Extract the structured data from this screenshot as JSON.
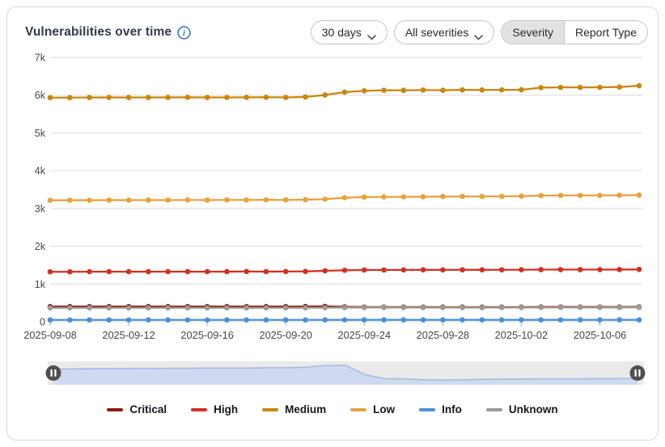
{
  "header": {
    "title": "Vulnerabilities over time",
    "controls": {
      "time_range": {
        "value": "30 days"
      },
      "severity_filter": {
        "value": "All severities"
      },
      "group_toggle": {
        "options": [
          "Severity",
          "Report Type"
        ],
        "selected": "Severity"
      }
    }
  },
  "chart_data": {
    "type": "line",
    "title": "Vulnerabilities over time",
    "xlabel": "",
    "ylabel": "",
    "ylim": [
      0,
      7000
    ],
    "grid": true,
    "legend_position": "bottom",
    "y_ticks": [
      "0",
      "1k",
      "2k",
      "3k",
      "4k",
      "5k",
      "6k",
      "7k"
    ],
    "x": [
      "2025-09-08",
      "2025-09-09",
      "2025-09-10",
      "2025-09-11",
      "2025-09-12",
      "2025-09-13",
      "2025-09-14",
      "2025-09-15",
      "2025-09-16",
      "2025-09-17",
      "2025-09-18",
      "2025-09-19",
      "2025-09-20",
      "2025-09-21",
      "2025-09-22",
      "2025-09-23",
      "2025-09-24",
      "2025-09-25",
      "2025-09-26",
      "2025-09-27",
      "2025-09-28",
      "2025-09-29",
      "2025-09-30",
      "2025-10-01",
      "2025-10-02",
      "2025-10-03",
      "2025-10-04",
      "2025-10-05",
      "2025-10-06",
      "2025-10-07",
      "2025-10-08"
    ],
    "x_tick_labels": [
      "2025-09-08",
      "2025-09-12",
      "2025-09-16",
      "2025-09-20",
      "2025-09-24",
      "2025-09-28",
      "2025-10-02",
      "2025-10-06"
    ],
    "x_tick_every": 4,
    "series": [
      {
        "name": "Medium",
        "color": "#c8870e",
        "values": [
          5935,
          5935,
          5938,
          5940,
          5938,
          5940,
          5940,
          5942,
          5940,
          5940,
          5942,
          5945,
          5940,
          5952,
          6005,
          6080,
          6115,
          6130,
          6128,
          6135,
          6130,
          6140,
          6138,
          6140,
          6142,
          6200,
          6205,
          6205,
          6208,
          6215,
          6250
        ]
      },
      {
        "name": "Low",
        "color": "#e6a23c",
        "values": [
          3215,
          3218,
          3218,
          3220,
          3220,
          3222,
          3220,
          3225,
          3222,
          3225,
          3225,
          3228,
          3225,
          3232,
          3245,
          3285,
          3300,
          3305,
          3308,
          3310,
          3315,
          3318,
          3318,
          3320,
          3325,
          3340,
          3345,
          3345,
          3345,
          3348,
          3352
        ]
      },
      {
        "name": "High",
        "color": "#d23121",
        "values": [
          1322,
          1322,
          1325,
          1325,
          1325,
          1326,
          1325,
          1326,
          1325,
          1326,
          1330,
          1326,
          1330,
          1332,
          1348,
          1362,
          1370,
          1370,
          1372,
          1374,
          1372,
          1375,
          1374,
          1375,
          1376,
          1380,
          1380,
          1380,
          1380,
          1382,
          1385
        ]
      },
      {
        "name": "Critical",
        "color": "#8e1b0c",
        "values": [
          400,
          400,
          400,
          400,
          400,
          400,
          400,
          400,
          400,
          400,
          400,
          400,
          400,
          402,
          405,
          395,
          388,
          388,
          388,
          388,
          386,
          386,
          386,
          386,
          386,
          390,
          390,
          390,
          390,
          390,
          392
        ]
      },
      {
        "name": "Unknown",
        "color": "#9b9b9b",
        "values": [
          365,
          365,
          366,
          366,
          366,
          366,
          366,
          367,
          366,
          367,
          367,
          367,
          367,
          368,
          372,
          376,
          376,
          376,
          376,
          375,
          374,
          374,
          374,
          375,
          375,
          378,
          378,
          378,
          378,
          379,
          380
        ]
      },
      {
        "name": "Info",
        "color": "#4a90d9",
        "values": [
          48,
          48,
          48,
          48,
          48,
          48,
          48,
          48,
          48,
          48,
          48,
          48,
          48,
          48,
          50,
          50,
          50,
          50,
          50,
          50,
          50,
          50,
          50,
          50,
          50,
          50,
          50,
          50,
          50,
          50,
          50
        ]
      }
    ],
    "navigator": {
      "fractions": [
        0.7,
        0.7,
        0.71,
        0.71,
        0.72,
        0.72,
        0.73,
        0.73,
        0.74,
        0.74,
        0.74,
        0.75,
        0.75,
        0.78,
        0.85,
        0.86,
        0.45,
        0.27,
        0.26,
        0.22,
        0.21,
        0.22,
        0.24,
        0.25,
        0.25,
        0.26,
        0.26,
        0.26,
        0.27,
        0.27,
        0.28
      ]
    }
  },
  "legend": {
    "items": [
      {
        "label": "Critical",
        "color": "#8e1b0c"
      },
      {
        "label": "High",
        "color": "#d23121"
      },
      {
        "label": "Medium",
        "color": "#c8870e"
      },
      {
        "label": "Low",
        "color": "#e6a23c"
      },
      {
        "label": "Info",
        "color": "#4a90d9"
      },
      {
        "label": "Unknown",
        "color": "#9b9b9b"
      }
    ]
  },
  "colors": {
    "grid": "#dcdcdc",
    "axis_text": "#474747",
    "info_icon_blue": "#2f6fc4",
    "navigator_bg": "#eaeaea",
    "navigator_fill": "#cfdaf0",
    "navigator_line": "#a3b5de",
    "navigator_handle": "#4f4f4f"
  }
}
